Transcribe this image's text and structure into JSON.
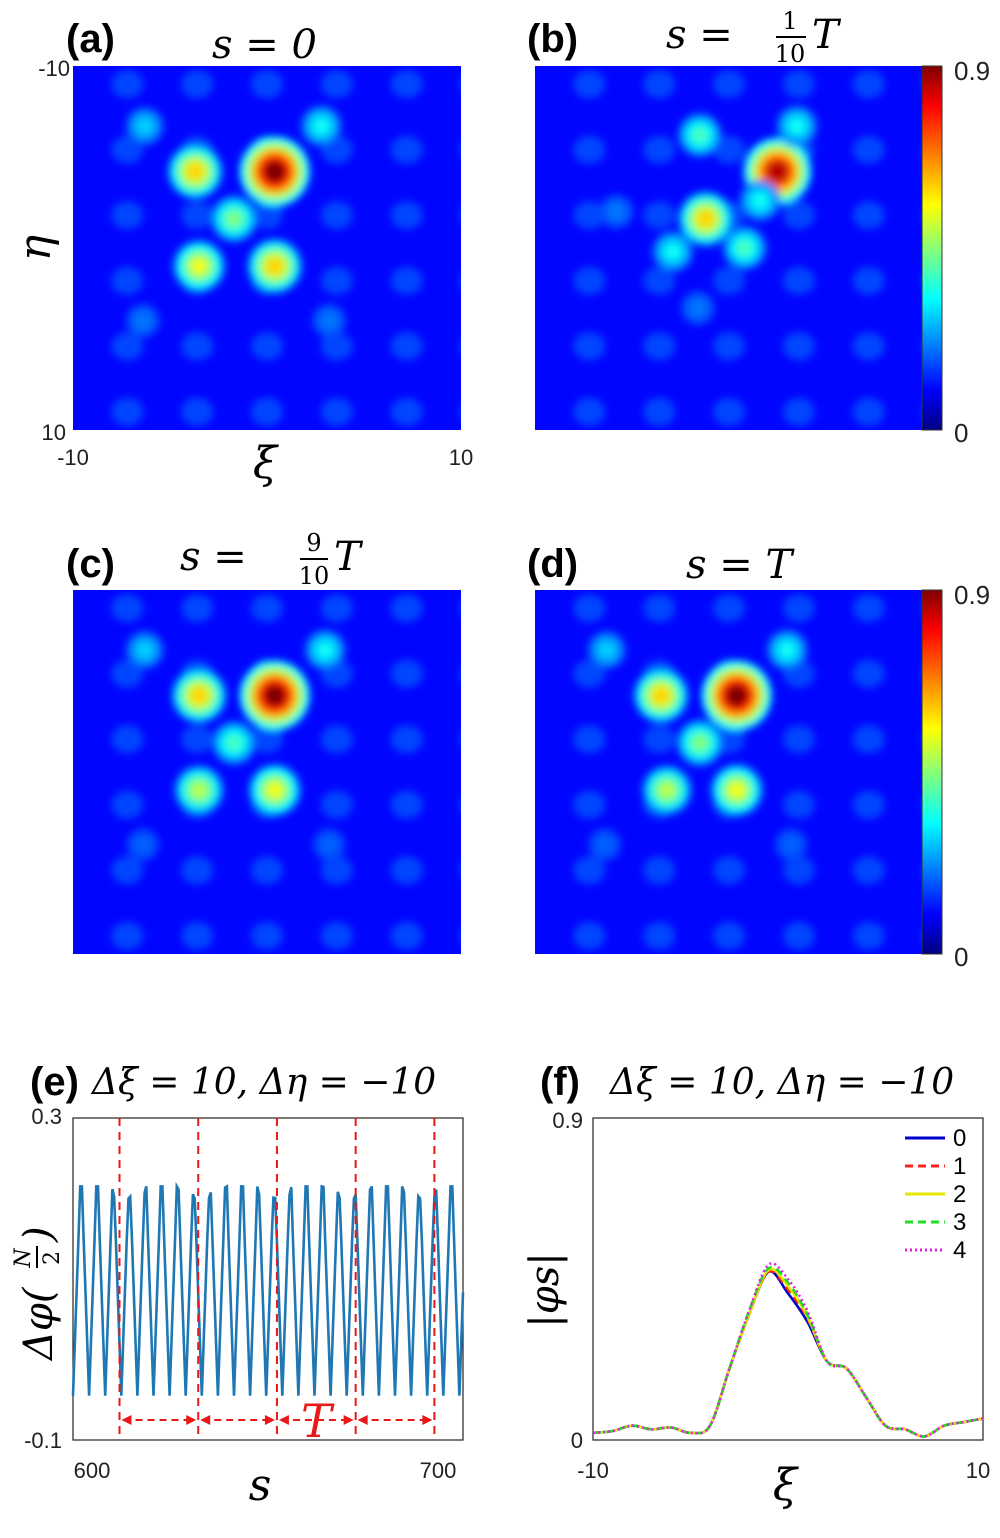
{
  "chart_data": [
    {
      "type": "heatmap",
      "panel": "(a)",
      "title": "s = 0",
      "xlabel": "ξ",
      "ylabel": "η",
      "xlim": [
        -10,
        10
      ],
      "ylim": [
        -10,
        10
      ],
      "x_ticks": [
        "-10",
        "10"
      ],
      "y_ticks": [
        "-10",
        "10"
      ],
      "color_range": [
        0,
        0.9
      ],
      "peaks": [
        {
          "xi": 0.4,
          "eta": -4.2,
          "value": 0.9
        },
        {
          "xi": -3.7,
          "eta": -4.2,
          "value": 0.6
        },
        {
          "xi": -1.7,
          "eta": -1.6,
          "value": 0.45
        },
        {
          "xi": -3.5,
          "eta": 1.0,
          "value": 0.55
        },
        {
          "xi": 0.4,
          "eta": 1.0,
          "value": 0.6
        },
        {
          "xi": -6.3,
          "eta": -6.7,
          "value": 0.3
        },
        {
          "xi": 2.8,
          "eta": -6.7,
          "value": 0.35
        },
        {
          "xi": 3.2,
          "eta": 4.0,
          "value": 0.22
        },
        {
          "xi": -6.4,
          "eta": 4.0,
          "value": 0.22
        }
      ]
    },
    {
      "type": "heatmap",
      "panel": "(b)",
      "title": "s = 1/10 T",
      "xlim": [
        -10,
        10
      ],
      "ylim": [
        -10,
        10
      ],
      "colorbar_ticks": [
        "0.9",
        "0"
      ],
      "color_range": [
        0,
        0.9
      ],
      "peaks": [
        {
          "xi": 2.5,
          "eta": -4.2,
          "value": 0.85
        },
        {
          "xi": -1.2,
          "eta": -1.6,
          "value": 0.6
        },
        {
          "xi": -1.5,
          "eta": -6.2,
          "value": 0.4
        },
        {
          "xi": 3.5,
          "eta": -6.7,
          "value": 0.35
        },
        {
          "xi": 0.8,
          "eta": 0.0,
          "value": 0.4
        },
        {
          "xi": 1.6,
          "eta": -2.6,
          "value": 0.35
        },
        {
          "xi": -2.9,
          "eta": 0.2,
          "value": 0.35
        },
        {
          "xi": -1.6,
          "eta": 3.3,
          "value": 0.22
        },
        {
          "xi": -5.8,
          "eta": -2.0,
          "value": 0.22
        }
      ]
    },
    {
      "type": "heatmap",
      "panel": "(c)",
      "title": "s = 9/10 T",
      "xlim": [
        -10,
        10
      ],
      "ylim": [
        -10,
        10
      ],
      "color_range": [
        0,
        0.9
      ],
      "peaks": [
        {
          "xi": 0.4,
          "eta": -4.2,
          "value": 0.9
        },
        {
          "xi": -3.5,
          "eta": -4.2,
          "value": 0.6
        },
        {
          "xi": -1.7,
          "eta": -1.6,
          "value": 0.4
        },
        {
          "xi": -3.5,
          "eta": 1.0,
          "value": 0.5
        },
        {
          "xi": 0.4,
          "eta": 1.0,
          "value": 0.55
        },
        {
          "xi": -6.3,
          "eta": -6.7,
          "value": 0.3
        },
        {
          "xi": 3.0,
          "eta": -6.7,
          "value": 0.35
        },
        {
          "xi": 3.2,
          "eta": 4.0,
          "value": 0.2
        },
        {
          "xi": -6.4,
          "eta": 4.0,
          "value": 0.2
        }
      ]
    },
    {
      "type": "heatmap",
      "panel": "(d)",
      "title": "s = T",
      "xlim": [
        -10,
        10
      ],
      "ylim": [
        -10,
        10
      ],
      "colorbar_ticks": [
        "0.9",
        "0"
      ],
      "color_range": [
        0,
        0.9
      ],
      "peaks": [
        {
          "xi": 0.4,
          "eta": -4.2,
          "value": 0.9
        },
        {
          "xi": -3.5,
          "eta": -4.2,
          "value": 0.6
        },
        {
          "xi": -1.5,
          "eta": -1.6,
          "value": 0.45
        },
        {
          "xi": -3.2,
          "eta": 1.0,
          "value": 0.5
        },
        {
          "xi": 0.4,
          "eta": 1.0,
          "value": 0.55
        },
        {
          "xi": -6.3,
          "eta": -6.7,
          "value": 0.3
        },
        {
          "xi": 3.0,
          "eta": -6.7,
          "value": 0.35
        },
        {
          "xi": 3.2,
          "eta": 4.0,
          "value": 0.2
        },
        {
          "xi": -6.4,
          "eta": 4.0,
          "value": 0.2
        }
      ]
    },
    {
      "type": "line",
      "panel": "(e)",
      "title": "Δξ = 10, Δη = −10",
      "xlabel": "s",
      "ylabel": "Δφ(N/2)",
      "xlim": [
        597,
        706
      ],
      "ylim": [
        -0.1,
        0.3
      ],
      "x_ticks": [
        600,
        700
      ],
      "y_ticks": [
        "-0.1",
        "0.3"
      ],
      "series": [
        {
          "color": "#1f77b4",
          "period": 4.5,
          "min": -0.045,
          "max": 0.215,
          "x_start": 597,
          "x_end": 706
        }
      ],
      "period_markers": [
        610,
        632,
        654,
        676,
        698
      ],
      "period_label": "T"
    },
    {
      "type": "line",
      "panel": "(f)",
      "title": "Δξ = 10, Δη = −10",
      "xlabel": "ξ",
      "ylabel": "|φs|",
      "xlim": [
        -10,
        10
      ],
      "ylim": [
        0,
        0.9
      ],
      "x_ticks": [
        "-10",
        "10"
      ],
      "y_ticks": [
        "0.9",
        "0"
      ],
      "x": [
        -10,
        -9,
        -8,
        -7,
        -6,
        -5,
        -4,
        -3,
        -2,
        -1,
        0,
        1,
        2,
        3,
        4,
        5,
        6,
        7,
        8,
        9,
        10
      ],
      "series": [
        {
          "name": "0",
          "color": "#0000cc",
          "dash": "solid",
          "values": [
            0.02,
            0.025,
            0.04,
            0.03,
            0.035,
            0.02,
            0.04,
            0.2,
            0.35,
            0.47,
            0.41,
            0.33,
            0.22,
            0.2,
            0.12,
            0.04,
            0.03,
            0.01,
            0.04,
            0.05,
            0.06
          ]
        },
        {
          "name": "1",
          "color": "#ff2020",
          "dash": "dashed",
          "values": [
            0.02,
            0.025,
            0.04,
            0.03,
            0.035,
            0.02,
            0.04,
            0.2,
            0.35,
            0.47,
            0.42,
            0.34,
            0.22,
            0.2,
            0.12,
            0.04,
            0.03,
            0.01,
            0.04,
            0.05,
            0.06
          ]
        },
        {
          "name": "2",
          "color": "#e6e600",
          "dash": "solid",
          "values": [
            0.02,
            0.025,
            0.04,
            0.03,
            0.035,
            0.02,
            0.04,
            0.2,
            0.35,
            0.475,
            0.43,
            0.345,
            0.22,
            0.2,
            0.12,
            0.04,
            0.03,
            0.01,
            0.04,
            0.05,
            0.06
          ]
        },
        {
          "name": "3",
          "color": "#22dd22",
          "dash": "dashed",
          "values": [
            0.02,
            0.025,
            0.04,
            0.03,
            0.035,
            0.02,
            0.04,
            0.2,
            0.36,
            0.48,
            0.44,
            0.35,
            0.22,
            0.2,
            0.12,
            0.04,
            0.03,
            0.01,
            0.04,
            0.05,
            0.06
          ]
        },
        {
          "name": "4",
          "color": "#e020e0",
          "dash": "dotted",
          "values": [
            0.02,
            0.025,
            0.04,
            0.03,
            0.035,
            0.02,
            0.04,
            0.2,
            0.36,
            0.49,
            0.45,
            0.36,
            0.22,
            0.2,
            0.12,
            0.04,
            0.03,
            0.01,
            0.04,
            0.05,
            0.06
          ]
        }
      ],
      "legend_position": "top-right"
    }
  ],
  "labels": {
    "a": "(a)",
    "b": "(b)",
    "c": "(c)",
    "d": "(d)",
    "e": "(e)",
    "f": "(f)"
  }
}
